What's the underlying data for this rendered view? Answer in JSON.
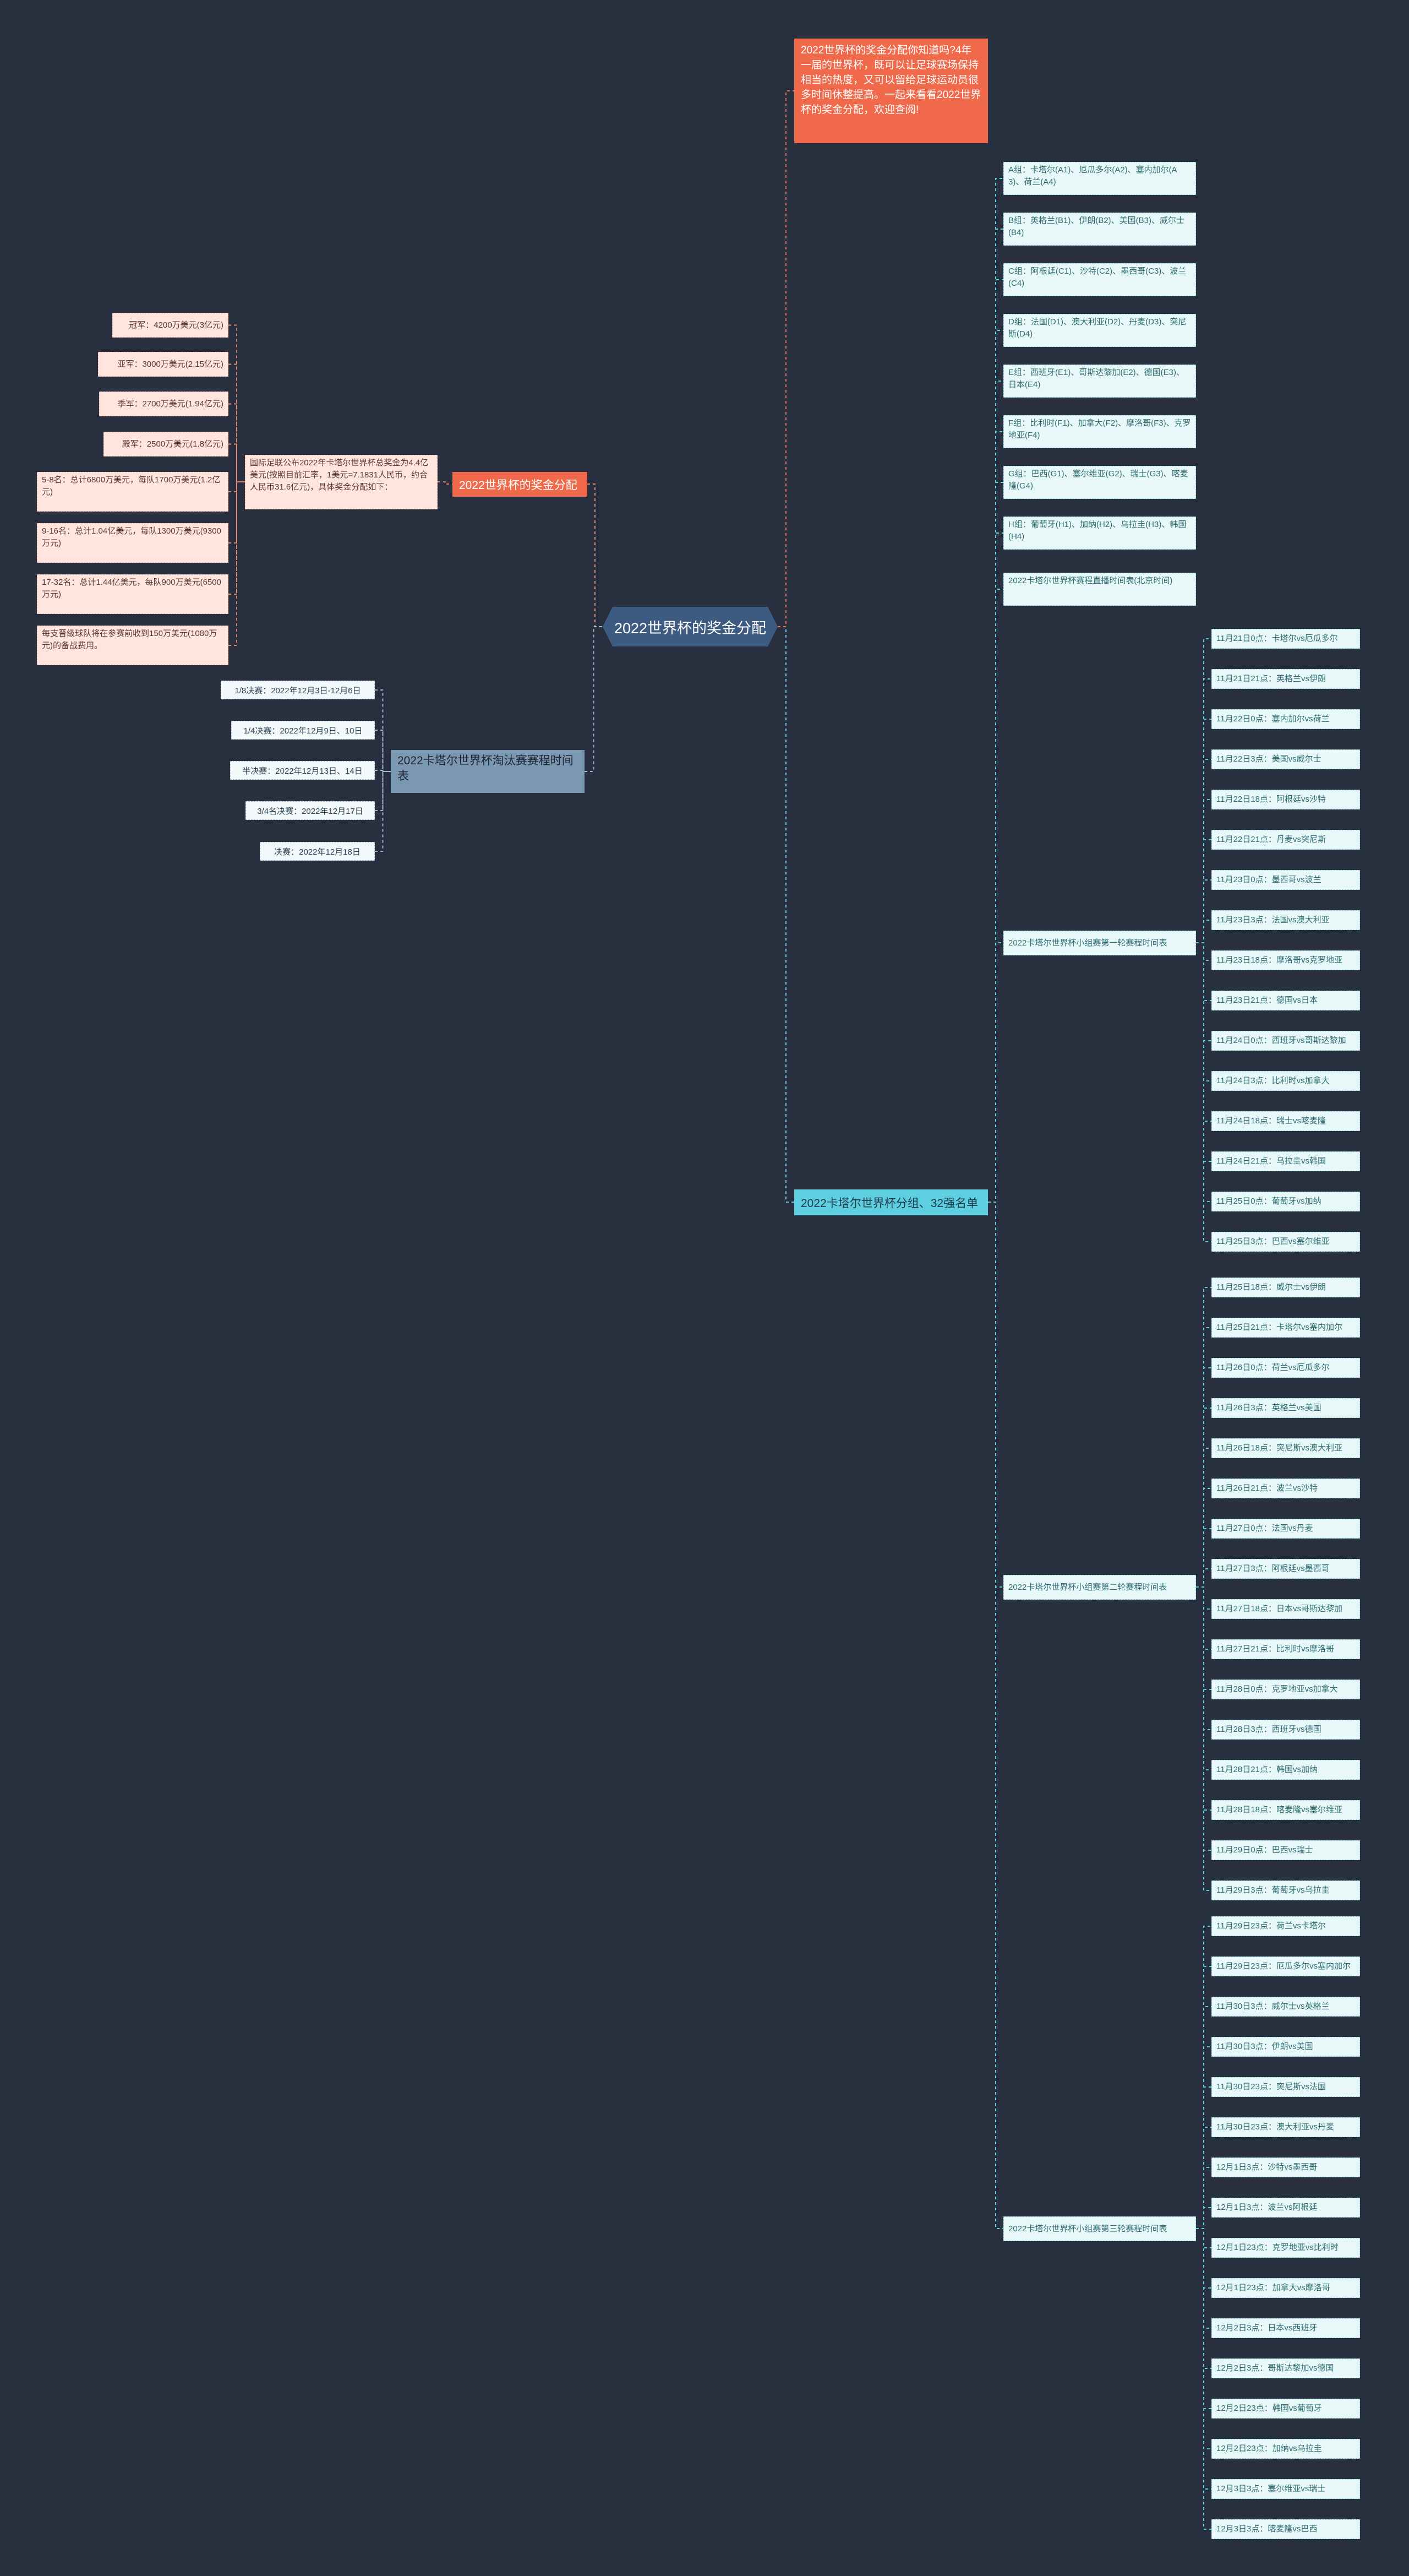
{
  "root": {
    "label": "2022世界杯的奖金分配"
  },
  "intro": {
    "text": "2022世界杯的奖金分配你知道吗?4年一届的世界杯，既可以让足球赛场保持相当的热度，又可以留给足球运动员很多时间休整提高。一起来看看2022世界杯的奖金分配，欢迎查阅!"
  },
  "prize": {
    "title": "2022世界杯的奖金分配",
    "desc": "国际足联公布2022年卡塔尔世界杯总奖金为4.4亿美元(按照目前汇率，1美元=7.1831人民币，约合人民币31.6亿元)，具体奖金分配如下：",
    "items": [
      "冠军：4200万美元(3亿元)",
      "亚军：3000万美元(2.15亿元)",
      "季军：2700万美元(1.94亿元)",
      "殿军：2500万美元(1.8亿元)",
      "5-8名：总计6800万美元，每队1700万美元(1.2亿元)",
      "9-16名：总计1.04亿美元，每队1300万美元(9300万元)",
      "17-32名：总计1.44亿美元，每队900万美元(6500万元)",
      "每支晋级球队将在参赛前收到150万美元(1080万元)的备战费用。"
    ]
  },
  "knockout": {
    "title": "2022卡塔尔世界杯淘汰赛赛程时间表",
    "items": [
      "1/8决赛：2022年12月3日-12月6日",
      "1/4决赛：2022年12月9日、10日",
      "半决赛：2022年12月13日、14日",
      "3/4名决赛：2022年12月17日",
      "决赛：2022年12月18日"
    ]
  },
  "groups": {
    "title": "2022卡塔尔世界杯分组、32强名单",
    "items": [
      "A组：卡塔尔(A1)、厄瓜多尔(A2)、塞内加尔(A3)、荷兰(A4)",
      "B组：英格兰(B1)、伊朗(B2)、美国(B3)、威尔士(B4)",
      "C组：阿根廷(C1)、沙特(C2)、墨西哥(C3)、波兰(C4)",
      "D组：法国(D1)、澳大利亚(D2)、丹麦(D3)、突尼斯(D4)",
      "E组：西班牙(E1)、哥斯达黎加(E2)、德国(E3)、日本(E4)",
      "F组：比利时(F1)、加拿大(F2)、摩洛哥(F3)、克罗地亚(F4)",
      "G组：巴西(G1)、塞尔维亚(G2)、瑞士(G3)、喀麦隆(G4)",
      "H组：葡萄牙(H1)、加纳(H2)、乌拉圭(H3)、韩国(H4)",
      "2022卡塔尔世界杯赛程直播时间表(北京时间)"
    ],
    "round1": {
      "title": "2022卡塔尔世界杯小组赛第一轮赛程时间表",
      "matches": [
        "11月21日0点：卡塔尔vs厄瓜多尔",
        "11月21日21点：英格兰vs伊朗",
        "11月22日0点：塞内加尔vs荷兰",
        "11月22日3点：美国vs威尔士",
        "11月22日18点：阿根廷vs沙特",
        "11月22日21点：丹麦vs突尼斯",
        "11月23日0点：墨西哥vs波兰",
        "11月23日3点：法国vs澳大利亚",
        "11月23日18点：摩洛哥vs克罗地亚",
        "11月23日21点：德国vs日本",
        "11月24日0点：西班牙vs哥斯达黎加",
        "11月24日3点：比利时vs加拿大",
        "11月24日18点：瑞士vs喀麦隆",
        "11月24日21点：乌拉圭vs韩国",
        "11月25日0点：葡萄牙vs加纳",
        "11月25日3点：巴西vs塞尔维亚"
      ]
    },
    "round2": {
      "title": "2022卡塔尔世界杯小组赛第二轮赛程时间表",
      "matches": [
        "11月25日18点：威尔士vs伊朗",
        "11月25日21点：卡塔尔vs塞内加尔",
        "11月26日0点：荷兰vs厄瓜多尔",
        "11月26日3点：英格兰vs美国",
        "11月26日18点：突尼斯vs澳大利亚",
        "11月26日21点：波兰vs沙特",
        "11月27日0点：法国vs丹麦",
        "11月27日3点：阿根廷vs墨西哥",
        "11月27日18点：日本vs哥斯达黎加",
        "11月27日21点：比利时vs摩洛哥",
        "11月28日0点：克罗地亚vs加拿大",
        "11月28日3点：西班牙vs德国",
        "11月28日21点：韩国vs加纳",
        "11月28日18点：喀麦隆vs塞尔维亚",
        "11月29日0点：巴西vs瑞士",
        "11月29日3点：葡萄牙vs乌拉圭"
      ]
    },
    "round3": {
      "title": "2022卡塔尔世界杯小组赛第三轮赛程时间表",
      "matches": [
        "11月29日23点：荷兰vs卡塔尔",
        "11月29日23点：厄瓜多尔vs塞内加尔",
        "11月30日3点：威尔士vs英格兰",
        "11月30日3点：伊朗vs美国",
        "11月30日23点：突尼斯vs法国",
        "11月30日23点：澳大利亚vs丹麦",
        "12月1日3点：沙特vs墨西哥",
        "12月1日3点：波兰vs阿根廷",
        "12月1日23点：克罗地亚vs比利时",
        "12月1日23点：加拿大vs摩洛哥",
        "12月2日3点：日本vs西班牙",
        "12月2日3点：哥斯达黎加vs德国",
        "12月2日23点：韩国vs葡萄牙",
        "12月2日23点：加纳vs乌拉圭",
        "12月3日3点：塞尔维亚vs瑞士",
        "12月3日3点：喀麦隆vs巴西"
      ]
    }
  }
}
